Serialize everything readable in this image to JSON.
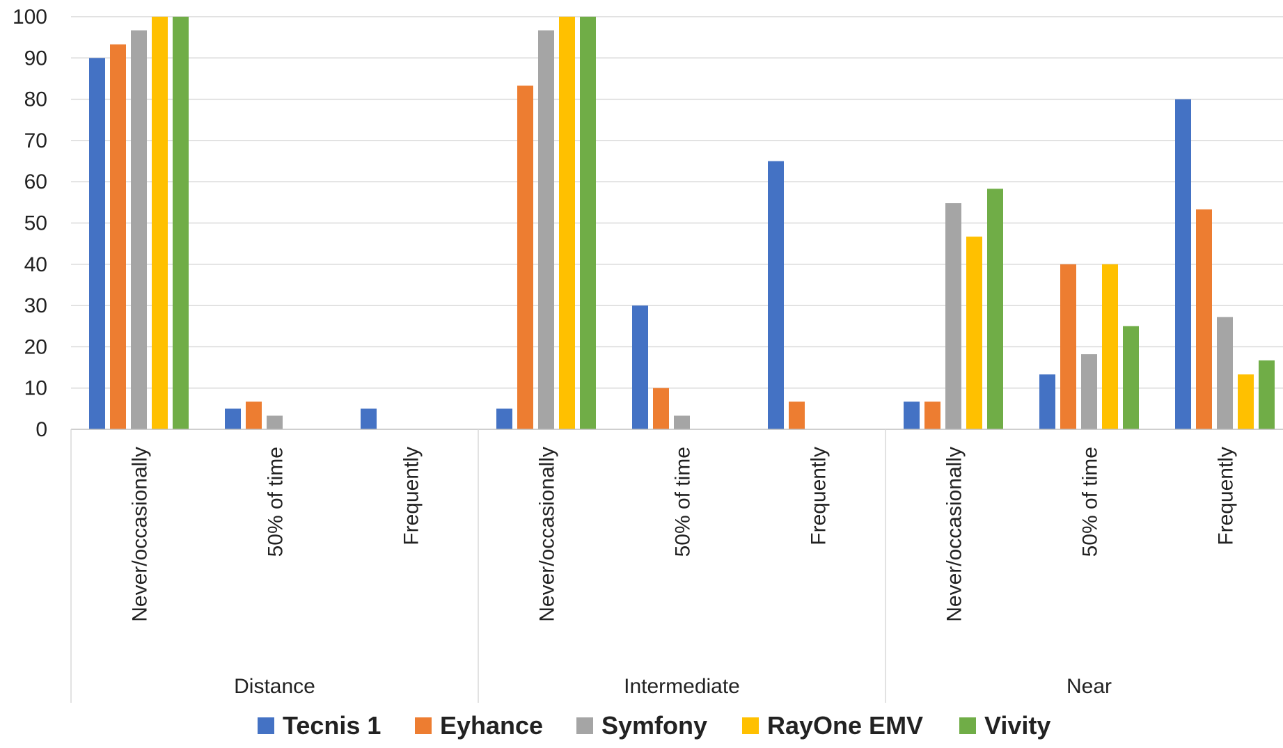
{
  "chart_data": {
    "type": "bar",
    "title": "",
    "xlabel": "",
    "ylabel": "",
    "ylim": [
      0,
      100
    ],
    "yticks": [
      0,
      10,
      20,
      30,
      40,
      50,
      60,
      70,
      80,
      90,
      100
    ],
    "grid": true,
    "legend_position": "bottom",
    "groups": [
      {
        "label": "Distance",
        "categories": [
          "Never/occasionally",
          "50% of time",
          "Frequently"
        ]
      },
      {
        "label": "Intermediate",
        "categories": [
          "Never/occasionally",
          "50% of time",
          "Frequently"
        ]
      },
      {
        "label": "Near",
        "categories": [
          "Never/occasionally",
          "50% of time",
          "Frequently"
        ]
      }
    ],
    "series": [
      {
        "name": "Tecnis 1",
        "color": "#4472C4",
        "values": [
          90,
          5,
          5,
          5,
          30,
          65,
          6.7,
          13.3,
          80
        ]
      },
      {
        "name": "Eyhance",
        "color": "#ED7D31",
        "values": [
          93.3,
          6.7,
          0,
          83.3,
          10,
          6.7,
          6.7,
          40,
          53.3
        ]
      },
      {
        "name": "Symfony",
        "color": "#A5A5A5",
        "values": [
          96.7,
          3.3,
          0,
          96.7,
          3.3,
          0,
          54.8,
          18.2,
          27.2
        ]
      },
      {
        "name": "RayOne EMV",
        "color": "#FFC000",
        "values": [
          100,
          0,
          0,
          100,
          0,
          0,
          46.7,
          40,
          13.3
        ]
      },
      {
        "name": "Vivity",
        "color": "#70AD47",
        "values": [
          100,
          0,
          0,
          100,
          0,
          0,
          58.3,
          25,
          16.7
        ]
      }
    ]
  }
}
